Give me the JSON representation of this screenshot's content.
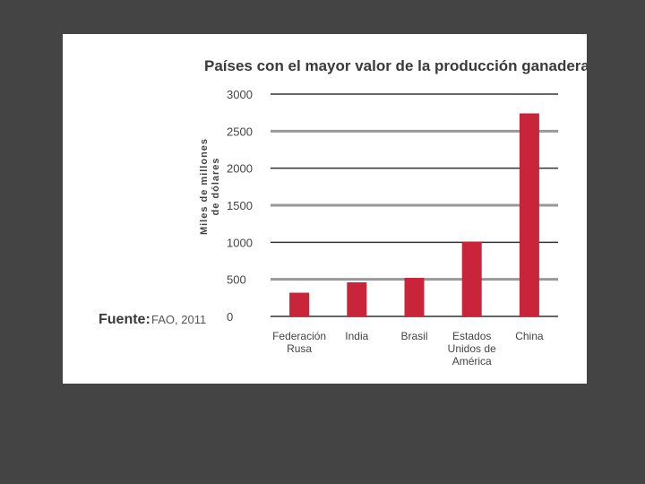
{
  "chart_data": {
    "type": "bar",
    "title": "Países con el mayor valor de la producción ganadera",
    "ylabel_lines": [
      "Miles de millones",
      "de dólares"
    ],
    "xlabel": "",
    "categories": [
      [
        "Federación",
        "Rusa"
      ],
      [
        "India"
      ],
      [
        "Brasil"
      ],
      [
        "Estados",
        "Unidos de",
        "América"
      ],
      [
        "China"
      ]
    ],
    "values": [
      320,
      460,
      520,
      1010,
      2740
    ],
    "ylim": [
      0,
      3000
    ],
    "yticks": [
      0,
      500,
      1000,
      1500,
      2000,
      2500,
      3000
    ],
    "grid": true,
    "bar_color": "#c8243a",
    "source_label": "Fuente:",
    "source_value": "FAO, 2011"
  }
}
